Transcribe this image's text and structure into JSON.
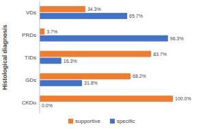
{
  "chart_data": {
    "type": "bar",
    "orientation": "horizontal",
    "y_label": "Histological diagnosis",
    "categories": [
      "VDs",
      "PRDs",
      "TIDs",
      "GDs",
      "CKDu"
    ],
    "series": [
      {
        "name": "supportive",
        "color": "#ed7d31",
        "values": [
          34.3,
          3.7,
          83.7,
          68.2,
          100.0
        ],
        "value_labels": [
          "34.3%",
          "3.7%",
          "83.7%",
          "68.2%",
          "100.0%"
        ]
      },
      {
        "name": "specific",
        "color": "#4472c4",
        "values": [
          65.7,
          96.3,
          16.3,
          31.8,
          0.0
        ],
        "value_labels": [
          "65.7%",
          "96.3%",
          "16.3%",
          "31.8%",
          "0.0%"
        ]
      }
    ],
    "xlim": [
      0,
      100
    ],
    "data_labels": true,
    "legend": "bottom",
    "tick_labels": "y",
    "grid": false
  }
}
